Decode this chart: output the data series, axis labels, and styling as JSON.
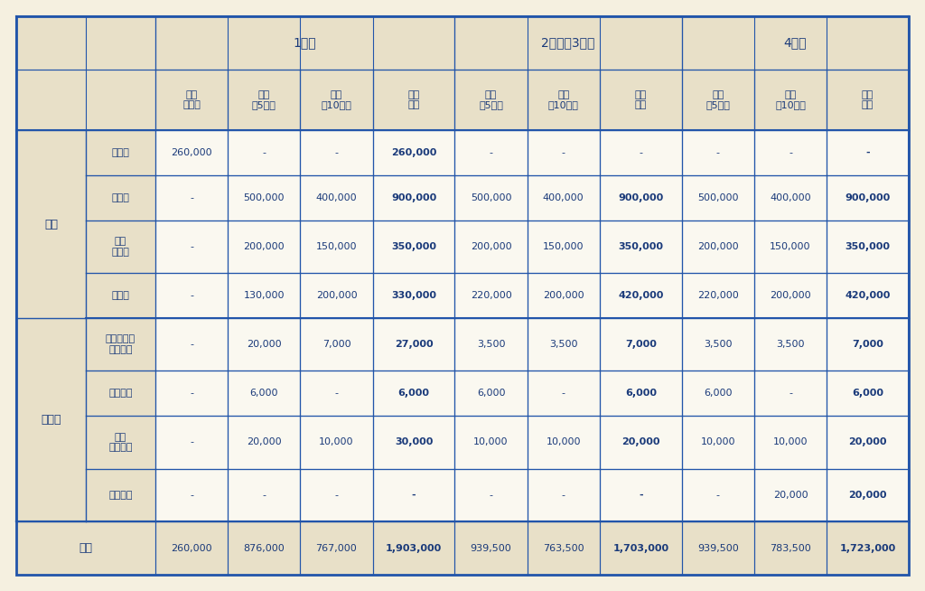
{
  "bg_color": "#f5f0e0",
  "header_bg": "#e8e0c8",
  "white_bg": "#faf8f0",
  "border_color": "#2255aa",
  "text_color": "#1a3a7a",
  "bold_color": "#1a3a7a",
  "outer_border": "#1a3a7a",
  "col1_header": "",
  "col2_header": "",
  "year_headers": [
    "1年次",
    "2年次・3年次",
    "4年次"
  ],
  "year_spans": [
    4,
    3,
    3
  ],
  "sub_headers": [
    "入学\n手続時",
    "前期\n（5月）",
    "後期\n（10月）",
    "年間\n合計",
    "前期\n（5月）",
    "後期\n（10月）",
    "年間\n合計",
    "前期\n（5月）",
    "後期\n（10月）",
    "年間\n合計"
  ],
  "row_group1_label": "学費",
  "row_group2_label": "その他",
  "footer_label": "合計",
  "rows": [
    {
      "group": "学費",
      "label": "入学金",
      "vals": [
        "260,000",
        "-",
        "-",
        "260,000",
        "-",
        "-",
        "-",
        "-",
        "-",
        "-"
      ],
      "bold_cols": [
        3,
        9
      ]
    },
    {
      "group": "学費",
      "label": "授業料",
      "vals": [
        "-",
        "500,000",
        "400,000",
        "900,000",
        "500,000",
        "400,000",
        "900,000",
        "500,000",
        "400,000",
        "900,000"
      ],
      "bold_cols": [
        3,
        6,
        9
      ]
    },
    {
      "group": "学費",
      "label": "設備\n維持費",
      "vals": [
        "-",
        "200,000",
        "150,000",
        "350,000",
        "200,000",
        "150,000",
        "350,000",
        "200,000",
        "150,000",
        "350,000"
      ],
      "bold_cols": [
        3,
        6,
        9
      ]
    },
    {
      "group": "学費",
      "label": "実習費",
      "vals": [
        "-",
        "130,000",
        "200,000",
        "330,000",
        "220,000",
        "200,000",
        "420,000",
        "220,000",
        "200,000",
        "420,000"
      ],
      "bold_cols": [
        3,
        6,
        9
      ]
    },
    {
      "group": "その他",
      "label": "学生保険・\n研修費等",
      "vals": [
        "-",
        "20,000",
        "7,000",
        "27,000",
        "3,500",
        "3,500",
        "7,000",
        "3,500",
        "3,500",
        "7,000"
      ],
      "bold_cols": [
        3,
        6,
        9
      ]
    },
    {
      "group": "その他",
      "label": "学友会費",
      "vals": [
        "-",
        "6,000",
        "-",
        "6,000",
        "6,000",
        "-",
        "6,000",
        "6,000",
        "-",
        "6,000"
      ],
      "bold_cols": [
        3,
        6,
        9
      ]
    },
    {
      "group": "その他",
      "label": "父母\n後援会費",
      "vals": [
        "-",
        "20,000",
        "10,000",
        "30,000",
        "10,000",
        "10,000",
        "20,000",
        "10,000",
        "10,000",
        "20,000"
      ],
      "bold_cols": [
        3,
        6,
        9
      ]
    },
    {
      "group": "その他",
      "label": "同窓会費",
      "vals": [
        "-",
        "-",
        "-",
        "-",
        "-",
        "-",
        "-",
        "-",
        "20,000",
        "20,000"
      ],
      "bold_cols": [
        3,
        6,
        9
      ]
    }
  ],
  "footer_vals": [
    "260,000",
    "876,000",
    "767,000",
    "1,903,000",
    "939,500",
    "763,500",
    "1,703,000",
    "939,500",
    "783,500",
    "1,723,000"
  ],
  "footer_bold_cols": [
    3,
    6,
    9
  ]
}
